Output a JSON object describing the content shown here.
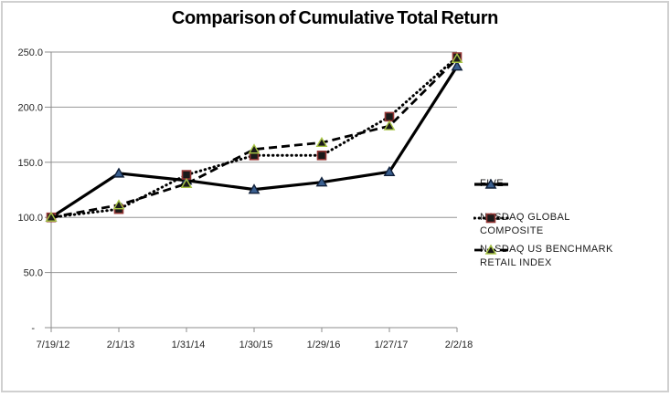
{
  "window": {
    "background": "#ffffff",
    "frame_border_color": "#d0d0d0"
  },
  "chart_data": {
    "type": "line",
    "title": "Comparison of Cumulative Total Return",
    "categories": [
      "7/19/12",
      "2/1/13",
      "1/31/14",
      "1/30/15",
      "1/29/16",
      "1/27/17",
      "2/2/18"
    ],
    "series": [
      {
        "name": "FIVE",
        "values": [
          100.0,
          140.0,
          133.5,
          125.3,
          131.9,
          141.3,
          237.0
        ],
        "line_style": "solid",
        "line_color": "#000000",
        "marker": "triangle",
        "marker_fill": "#3a5f8f",
        "marker_stroke": "#10203a"
      },
      {
        "name": "NASDAQ GLOBAL COMPOSITE",
        "values": [
          100.0,
          107.5,
          138.6,
          156.2,
          156.2,
          191.3,
          245.4
        ],
        "line_style": "dotted",
        "line_color": "#000000",
        "marker": "square",
        "marker_fill": "#1a1a1a",
        "marker_stroke": "#943634"
      },
      {
        "name": "NASDAQ US BENCHMARK RETAIL INDEX",
        "values": [
          100.0,
          111.2,
          130.5,
          161.7,
          167.8,
          182.9,
          244.0
        ],
        "line_style": "dashed",
        "line_color": "#000000",
        "marker": "triangle",
        "marker_fill": "#1a1a1a",
        "marker_stroke": "#a8c545"
      }
    ],
    "xlabel": "",
    "ylabel": "",
    "y_axis": {
      "min": 0,
      "max": 250,
      "step": 50,
      "tick_labels": [
        "-",
        "50.0",
        "100.0",
        "150.0",
        "200.0",
        "250.0"
      ]
    },
    "x_tick_labels": [
      "7/19/12",
      "2/1/13",
      "1/31/14",
      "1/30/15",
      "1/29/16",
      "1/27/17",
      "2/2/18"
    ],
    "grid": true,
    "legend_position": "right",
    "colors": {
      "gridline": "#969696",
      "axis": "#8c8c8c",
      "tick_text": "#262626"
    }
  }
}
